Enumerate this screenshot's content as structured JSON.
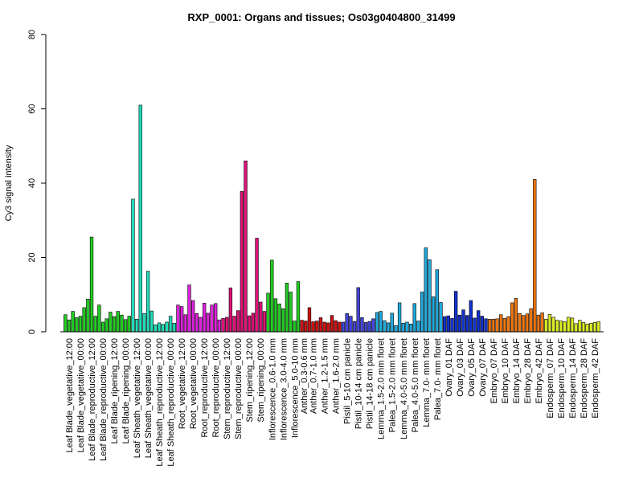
{
  "chart_data": {
    "type": "bar",
    "title": "RXP_0001: Organs and tissues; Os03g0404800_31499",
    "xlabel": "",
    "ylabel": "Cy3 signal intensity",
    "ylim": [
      0,
      80
    ],
    "yticks": [
      0,
      20,
      40,
      60,
      80
    ],
    "grid": false,
    "legend": "none",
    "groups": [
      {
        "label": "Leaf Blade_vegetative_12:00",
        "color": "#22cc22",
        "values": [
          4.6,
          3.2,
          5.5
        ]
      },
      {
        "label": "Leaf Blade_vegetative_00:00",
        "color": "#22cc22",
        "values": [
          3.8,
          4.2,
          6.5
        ]
      },
      {
        "label": "Leaf Blade_reproductive_12:00",
        "color": "#22cc22",
        "values": [
          8.8,
          25.5,
          4.2
        ]
      },
      {
        "label": "Leaf Blade_reproductive_00:00",
        "color": "#22cc22",
        "values": [
          7.2,
          2.6,
          3.5
        ]
      },
      {
        "label": "Leaf Blade_ripening_12:00",
        "color": "#22cc22",
        "values": [
          5.3,
          4.1,
          5.5
        ]
      },
      {
        "label": "Leaf Blade_ripening_00:00",
        "color": "#22cc22",
        "values": [
          4.5,
          3.3,
          4.2
        ]
      },
      {
        "label": "Leaf Sheath_vegetative_12:00",
        "color": "#22ddbb",
        "values": [
          35.7,
          3.4,
          61.0
        ]
      },
      {
        "label": "Leaf Sheath_vegetative_00:00",
        "color": "#22ddbb",
        "values": [
          4.9,
          16.3,
          5.6
        ]
      },
      {
        "label": "Leaf Sheath_reproductive_12:00",
        "color": "#22ddbb",
        "values": [
          1.9,
          2.4,
          2.0
        ]
      },
      {
        "label": "Leaf Sheath_reproductive_00:00",
        "color": "#22ddbb",
        "values": [
          2.6,
          4.2,
          2.3
        ]
      },
      {
        "label": "Root_vegetative_12:00",
        "color": "#dd22dd",
        "values": [
          7.2,
          6.8,
          4.6
        ]
      },
      {
        "label": "Root_vegetative_00:00",
        "color": "#dd22dd",
        "values": [
          12.6,
          8.4,
          4.9
        ]
      },
      {
        "label": "Root_reproductive_12:00",
        "color": "#dd22dd",
        "values": [
          3.9,
          7.7,
          5.0
        ]
      },
      {
        "label": "Root_reproductive_00:00",
        "color": "#dd22dd",
        "values": [
          7.2,
          7.6,
          3.2
        ]
      },
      {
        "label": "Stem_reproductive_12:00",
        "color": "#dd1177",
        "values": [
          3.6,
          3.9,
          11.8
        ]
      },
      {
        "label": "Stem_reproductive_00:00",
        "color": "#dd1177",
        "values": [
          4.2,
          5.7,
          37.8
        ]
      },
      {
        "label": "Stem_ripening_12:00",
        "color": "#dd1177",
        "values": [
          46.0,
          4.3,
          5.0
        ]
      },
      {
        "label": "Stem_ripening_00:00",
        "color": "#dd1177",
        "values": [
          25.2,
          8.0,
          5.5
        ]
      },
      {
        "label": "Inflorescence_0.6-1.0 mm",
        "color": "#22cc22",
        "values": [
          10.4,
          19.3,
          8.9
        ]
      },
      {
        "label": "Inflorescence_3.0-4.0 mm",
        "color": "#22cc22",
        "values": [
          7.5,
          6.2,
          13.1
        ]
      },
      {
        "label": "Inflorescence_5.0-10 mm",
        "color": "#22cc22",
        "values": [
          10.7,
          2.9,
          13.5
        ]
      },
      {
        "label": "Anther_0.3-0.6 mm",
        "color": "#cc1111",
        "values": [
          3.1,
          2.9
        ]
      },
      {
        "label": "Anther_0.7-1.0 mm",
        "color": "#cc1111",
        "values": [
          6.5,
          2.7,
          2.9
        ]
      },
      {
        "label": "Anther_1.2-1.5 mm",
        "color": "#cc1111",
        "values": [
          3.8,
          2.6,
          2.4
        ]
      },
      {
        "label": "Anther_1.6-2.0 mm",
        "color": "#cc1111",
        "values": [
          4.4,
          3.0,
          2.6
        ]
      },
      {
        "label": "Pistil_5-10 cm panicle",
        "color": "#4444dd",
        "values": [
          2.6,
          4.9,
          4.2
        ]
      },
      {
        "label": "Pistil_10-14 cm panicle",
        "color": "#4444dd",
        "values": [
          2.8,
          11.9,
          3.8
        ]
      },
      {
        "label": "Pistil_14-18 cm panicle",
        "color": "#4444dd",
        "values": [
          2.5,
          2.8,
          3.5
        ]
      },
      {
        "label": "Lemma_1.5-2.0 mm floret",
        "color": "#22aadd",
        "values": [
          5.2,
          5.5,
          3.0
        ]
      },
      {
        "label": "Palea_1.5-2.0 mm floret",
        "color": "#22aadd",
        "values": [
          2.4,
          5.0,
          1.7
        ]
      },
      {
        "label": "Lemma_4.0-5.0 mm floret",
        "color": "#22aadd",
        "values": [
          7.8,
          2.3,
          2.6
        ]
      },
      {
        "label": "Palea_4.0-5.0 mm floret",
        "color": "#22aadd",
        "values": [
          2.1,
          7.6,
          2.9
        ]
      },
      {
        "label": "Lemma_7.0- mm floret",
        "color": "#22aadd",
        "values": [
          10.7,
          22.6,
          19.4
        ]
      },
      {
        "label": "Palea_7.0- mm floret",
        "color": "#22aadd",
        "values": [
          9.4,
          16.7,
          7.9
        ]
      },
      {
        "label": "Ovary_01 DAF",
        "color": "#1133cc",
        "values": [
          4.1,
          4.3,
          3.6
        ]
      },
      {
        "label": "Ovary_03 DAF",
        "color": "#1133cc",
        "values": [
          10.9,
          4.5,
          5.9
        ]
      },
      {
        "label": "Ovary_05 DAF",
        "color": "#1133cc",
        "values": [
          4.4,
          8.4,
          3.7
        ]
      },
      {
        "label": "Ovary_07 DAF",
        "color": "#1133cc",
        "values": [
          5.7,
          4.2,
          3.5
        ]
      },
      {
        "label": "Embryo_07 DAF",
        "color": "#ee7711",
        "values": [
          3.4,
          3.4,
          3.5
        ]
      },
      {
        "label": "Embryo_10 DAF",
        "color": "#ee7711",
        "values": [
          4.6,
          3.6,
          4.1
        ]
      },
      {
        "label": "Embryo_14 DAF",
        "color": "#ee7711",
        "values": [
          7.8,
          9.0,
          4.9
        ]
      },
      {
        "label": "Embryo_28 DAF",
        "color": "#ee7711",
        "values": [
          4.4,
          4.8,
          6.2
        ]
      },
      {
        "label": "Embryo_42 DAF",
        "color": "#ee7711",
        "values": [
          41.0,
          4.5,
          5.1
        ]
      },
      {
        "label": "Endosperm_07 DAF",
        "color": "#ddee22",
        "values": [
          3.4,
          4.7,
          3.9
        ]
      },
      {
        "label": "Endosperm_10 DAF",
        "color": "#ddee22",
        "values": [
          3.1,
          2.9,
          2.7
        ]
      },
      {
        "label": "Endosperm_14 DAF",
        "color": "#ddee22",
        "values": [
          3.9,
          3.7,
          2.2
        ]
      },
      {
        "label": "Endosperm_28 DAF",
        "color": "#ddee22",
        "values": [
          3.1,
          2.5,
          2.1
        ]
      },
      {
        "label": "Endosperm_42 DAF",
        "color": "#ddee22",
        "values": [
          2.3,
          2.5,
          2.7
        ]
      }
    ]
  }
}
